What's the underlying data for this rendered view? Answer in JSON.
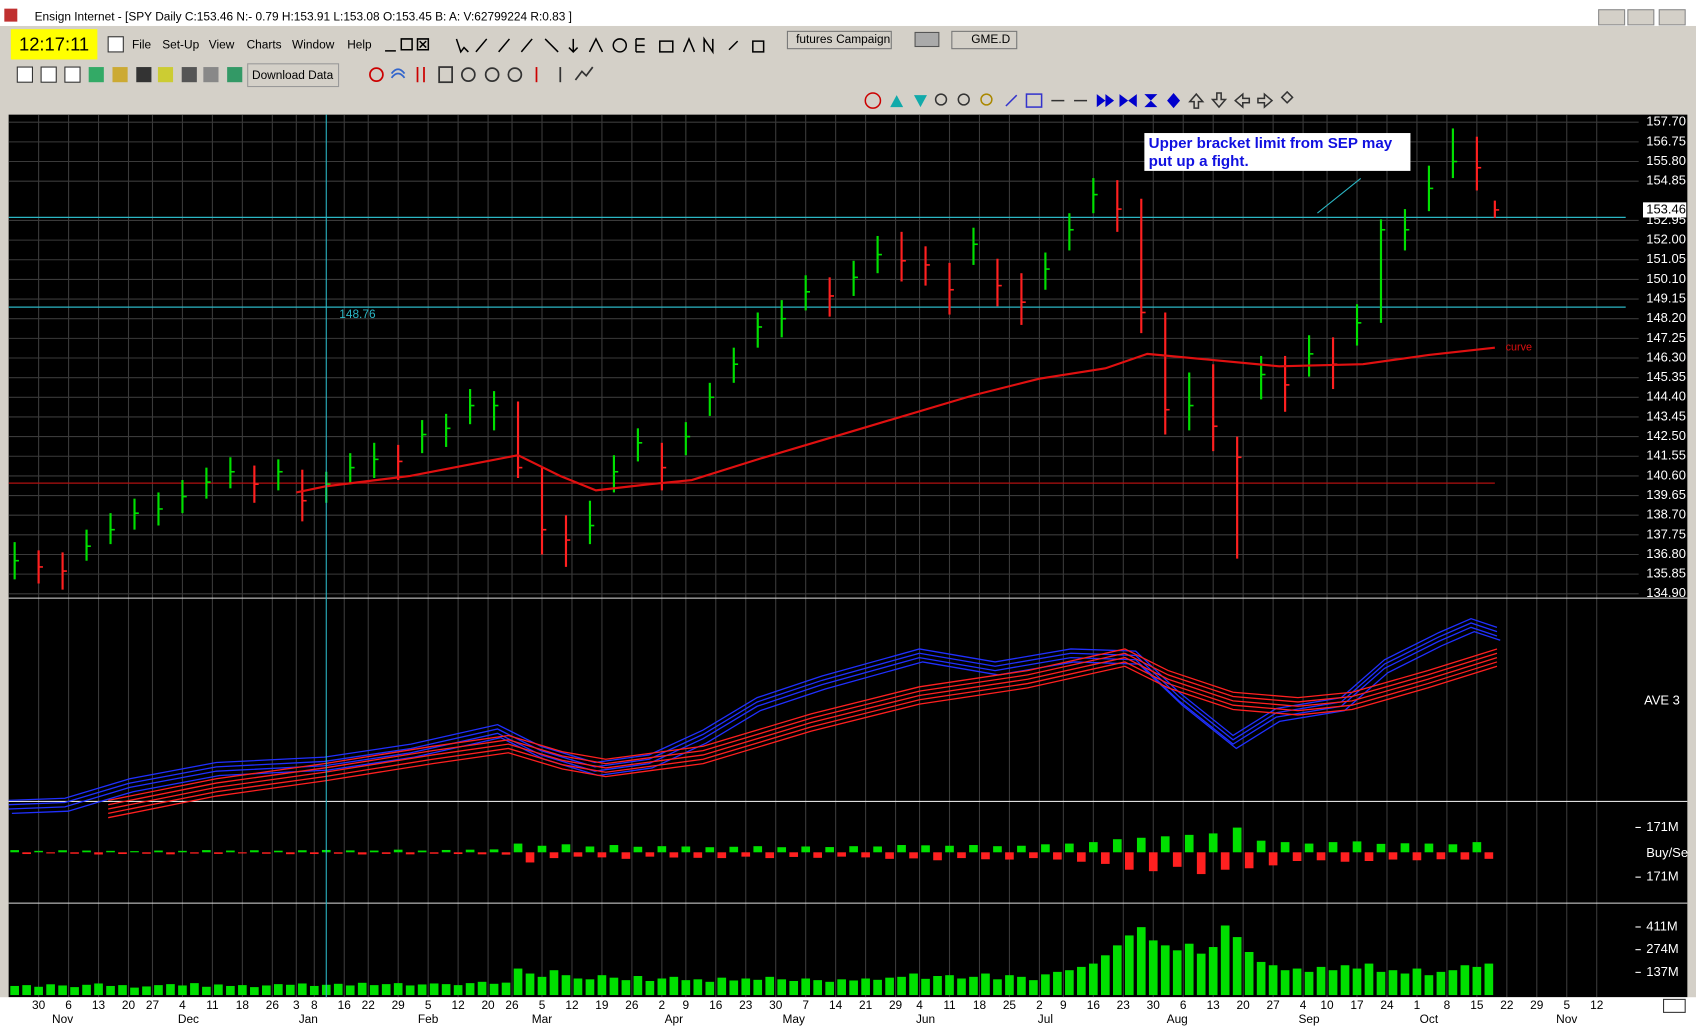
{
  "window": {
    "title": "Ensign Internet - [SPY Daily C:153.46 N:- 0.79 H:153.91 L:153.08 O:153.45 B: A: V:62799224 R:0.83 ]",
    "clock": "12:17:11",
    "menu": [
      "File",
      "Set-Up",
      "View",
      "Charts",
      "Window",
      "Help"
    ],
    "toolbar_button": "Download Data",
    "tabs": [
      "futures",
      "Campaign",
      "GME.D"
    ]
  },
  "chart_data": [
    {
      "type": "ohlc",
      "name": "SPY Daily",
      "xlim": [
        -5,
        267
      ],
      "ylim": [
        134.9,
        157.7
      ],
      "yticks": [
        {
          "value": 134.9,
          "label": "134.90"
        },
        {
          "value": 135.85,
          "label": "135.85"
        },
        {
          "value": 136.8,
          "label": "136.80"
        },
        {
          "value": 137.75,
          "label": "137.75"
        },
        {
          "value": 138.7,
          "label": "138.70"
        },
        {
          "value": 139.65,
          "label": "139.65"
        },
        {
          "value": 140.6,
          "label": "140.60"
        },
        {
          "value": 141.55,
          "label": "141.55"
        },
        {
          "value": 142.5,
          "label": "142.50"
        },
        {
          "value": 143.45,
          "label": "143.45"
        },
        {
          "value": 144.4,
          "label": "144.40"
        },
        {
          "value": 145.35,
          "label": "145.35"
        },
        {
          "value": 146.3,
          "label": "146.30"
        },
        {
          "value": 147.25,
          "label": "147.25"
        },
        {
          "value": 148.2,
          "label": "148.20"
        },
        {
          "value": 149.15,
          "label": "149.15"
        },
        {
          "value": 150.1,
          "label": "150.10"
        },
        {
          "value": 151.05,
          "label": "151.05"
        },
        {
          "value": 152,
          "label": "152.00"
        },
        {
          "value": 152.95,
          "label": "152.95"
        },
        {
          "value": 154.85,
          "label": "154.85"
        },
        {
          "value": 155.8,
          "label": "155.80"
        },
        {
          "value": 156.75,
          "label": "156.75"
        },
        {
          "value": 157.7,
          "label": "157.70"
        }
      ],
      "xticks": [
        {
          "value": 0,
          "label": "30"
        },
        {
          "value": 5,
          "label": "6"
        },
        {
          "value": 10,
          "label": "13"
        },
        {
          "value": 15,
          "label": "20"
        },
        {
          "value": 19,
          "label": "27"
        },
        {
          "value": 24,
          "label": "4"
        },
        {
          "value": 29,
          "label": "11"
        },
        {
          "value": 34,
          "label": "18"
        },
        {
          "value": 39,
          "label": "26"
        },
        {
          "value": 43,
          "label": "3"
        },
        {
          "value": 46,
          "label": "8"
        },
        {
          "value": 51,
          "label": "16"
        },
        {
          "value": 55,
          "label": "22"
        },
        {
          "value": 60,
          "label": "29"
        },
        {
          "value": 65,
          "label": "5"
        },
        {
          "value": 70,
          "label": "12"
        },
        {
          "value": 75,
          "label": "20"
        },
        {
          "value": 79,
          "label": "26"
        },
        {
          "value": 84,
          "label": "5"
        },
        {
          "value": 89,
          "label": "12"
        },
        {
          "value": 94,
          "label": "19"
        },
        {
          "value": 99,
          "label": "26"
        },
        {
          "value": 104,
          "label": "2"
        },
        {
          "value": 108,
          "label": "9"
        },
        {
          "value": 113,
          "label": "16"
        },
        {
          "value": 118,
          "label": "23"
        },
        {
          "value": 123,
          "label": "30"
        },
        {
          "value": 128,
          "label": "7"
        },
        {
          "value": 133,
          "label": "14"
        },
        {
          "value": 138,
          "label": "21"
        },
        {
          "value": 143,
          "label": "29"
        },
        {
          "value": 147,
          "label": "4"
        },
        {
          "value": 152,
          "label": "11"
        },
        {
          "value": 157,
          "label": "18"
        },
        {
          "value": 162,
          "label": "25"
        },
        {
          "value": 167,
          "label": "2"
        },
        {
          "value": 171,
          "label": "9"
        },
        {
          "value": 176,
          "label": "16"
        },
        {
          "value": 181,
          "label": "23"
        },
        {
          "value": 186,
          "label": "30"
        },
        {
          "value": 191,
          "label": "6"
        },
        {
          "value": 196,
          "label": "13"
        },
        {
          "value": 201,
          "label": "20"
        },
        {
          "value": 206,
          "label": "27"
        },
        {
          "value": 211,
          "label": "4"
        },
        {
          "value": 215,
          "label": "10"
        },
        {
          "value": 220,
          "label": "17"
        },
        {
          "value": 225,
          "label": "24"
        },
        {
          "value": 230,
          "label": "1"
        },
        {
          "value": 235,
          "label": "8"
        },
        {
          "value": 240,
          "label": "15"
        },
        {
          "value": 245,
          "label": "22"
        },
        {
          "value": 250,
          "label": "29"
        },
        {
          "value": 255,
          "label": "5"
        },
        {
          "value": 260,
          "label": "12"
        }
      ],
      "month_ticks": [
        {
          "value": 4,
          "label": "Nov"
        },
        {
          "value": 25,
          "label": "Dec"
        },
        {
          "value": 45,
          "label": "Jan"
        },
        {
          "value": 65,
          "label": "Feb"
        },
        {
          "value": 84,
          "label": "Mar"
        },
        {
          "value": 106,
          "label": "Apr"
        },
        {
          "value": 126,
          "label": "May"
        },
        {
          "value": 148,
          "label": "Jun"
        },
        {
          "value": 168,
          "label": "Jul"
        },
        {
          "value": 190,
          "label": "Aug"
        },
        {
          "value": 212,
          "label": "Sep"
        },
        {
          "value": 232,
          "label": "Oct"
        },
        {
          "value": 255,
          "label": "Nov"
        }
      ],
      "grid": true,
      "x": [
        -4,
        0,
        4,
        8,
        12,
        16,
        20,
        24,
        28,
        32,
        36,
        40,
        44,
        48,
        52,
        56,
        60,
        64,
        68,
        72,
        76,
        80,
        84,
        88,
        92,
        96,
        100,
        104,
        108,
        112,
        116,
        120,
        124,
        128,
        132,
        136,
        140,
        144,
        148,
        152,
        156,
        160,
        164,
        168,
        172,
        176,
        180,
        184,
        188,
        192,
        196,
        200,
        204,
        208,
        212,
        216,
        220,
        224,
        228,
        232,
        236,
        240,
        243
      ],
      "high": [
        137.4,
        137.0,
        136.9,
        138.0,
        138.8,
        139.5,
        139.8,
        140.4,
        141.0,
        141.5,
        141.1,
        141.4,
        140.9,
        140.8,
        141.7,
        142.2,
        142.1,
        143.3,
        143.6,
        144.8,
        144.7,
        144.2,
        141.0,
        138.7,
        139.4,
        141.6,
        142.9,
        142.2,
        143.2,
        145.1,
        146.8,
        148.5,
        149.1,
        150.3,
        150.2,
        151.0,
        152.2,
        152.4,
        151.7,
        150.9,
        152.6,
        151.1,
        150.4,
        151.4,
        153.3,
        155.0,
        154.9,
        154.0,
        148.5,
        145.6,
        146.0,
        142.5,
        146.4,
        146.4,
        147.4,
        147.3,
        148.9,
        153.0,
        153.5,
        155.6,
        157.4,
        157.0,
        153.91
      ],
      "low": [
        135.6,
        135.4,
        135.1,
        136.5,
        137.3,
        138.0,
        138.2,
        138.8,
        139.5,
        140.0,
        139.3,
        139.9,
        138.4,
        139.3,
        140.2,
        140.5,
        140.4,
        141.7,
        142.0,
        143.1,
        142.8,
        140.5,
        136.8,
        136.2,
        137.3,
        139.8,
        141.3,
        139.9,
        141.6,
        143.5,
        145.1,
        146.8,
        147.3,
        148.6,
        148.3,
        149.3,
        150.4,
        150.0,
        149.8,
        148.4,
        150.8,
        148.8,
        147.9,
        149.6,
        151.5,
        153.3,
        152.4,
        147.5,
        142.6,
        142.8,
        141.8,
        136.6,
        144.3,
        143.7,
        145.4,
        144.8,
        146.9,
        148.0,
        151.5,
        153.4,
        155.0,
        154.4,
        153.08
      ],
      "close": [
        136.5,
        136.2,
        136.0,
        137.2,
        138.0,
        138.8,
        139.0,
        139.6,
        140.3,
        140.8,
        140.2,
        140.8,
        139.4,
        140.2,
        141.0,
        141.4,
        141.3,
        142.6,
        142.9,
        144.0,
        144.0,
        141.0,
        138.0,
        137.5,
        138.2,
        140.8,
        142.2,
        141.0,
        142.5,
        144.4,
        146.0,
        147.8,
        148.2,
        149.5,
        149.3,
        150.2,
        151.3,
        151.0,
        150.8,
        149.6,
        151.8,
        149.8,
        149.0,
        150.6,
        152.5,
        154.2,
        153.5,
        148.5,
        143.8,
        144.0,
        143.0,
        141.5,
        145.5,
        145.0,
        146.5,
        146.0,
        148.0,
        152.5,
        152.5,
        154.5,
        155.8,
        155.5,
        153.46
      ],
      "up_color": "#00e000",
      "down_color": "#ff2020",
      "last_price": 153.46,
      "average": {
        "name": "curve",
        "color": "#e01010",
        "x": [
          43,
          48,
          62,
          71,
          80,
          87,
          93,
          102,
          109,
          120,
          138,
          156,
          167,
          178,
          185,
          196,
          207,
          221,
          232,
          243
        ],
        "values": [
          139.8,
          140.1,
          140.6,
          141.1,
          141.6,
          140.6,
          139.9,
          140.2,
          140.4,
          141.4,
          142.95,
          144.5,
          145.3,
          145.8,
          146.5,
          146.2,
          145.9,
          146.0,
          146.45,
          146.8
        ]
      },
      "hlines": [
        {
          "value": 153.1,
          "color": "#2bb6c4"
        },
        {
          "value": 148.76,
          "color": "#2bb6c4"
        },
        {
          "value": 140.25,
          "color": "#b01010"
        }
      ],
      "crosshair_x": 48,
      "annotation": [
        "Upper bracket limit from SEP may",
        "put up a fight."
      ],
      "ribbon_label": "AVE 3"
    },
    {
      "type": "bar",
      "name": "Buy/Se",
      "ylim": [
        -350,
        350
      ],
      "yticks": [
        {
          "value": 171,
          "label": "171M"
        },
        {
          "value": -171,
          "label": "171M"
        }
      ],
      "up_color": "#00e000",
      "down_color": "#ff2020",
      "x": [
        -4,
        -2,
        0,
        2,
        4,
        6,
        8,
        10,
        12,
        14,
        16,
        18,
        20,
        22,
        24,
        26,
        28,
        30,
        32,
        34,
        36,
        38,
        40,
        42,
        44,
        46,
        48,
        50,
        52,
        54,
        56,
        58,
        60,
        62,
        64,
        66,
        68,
        70,
        72,
        74,
        76,
        78,
        80,
        82,
        84,
        86,
        88,
        90,
        92,
        94,
        96,
        98,
        100,
        102,
        104,
        106,
        108,
        110,
        112,
        114,
        116,
        118,
        120,
        122,
        124,
        126,
        128,
        130,
        132,
        134,
        136,
        138,
        140,
        142,
        144,
        146,
        148,
        150,
        152,
        154,
        156,
        158,
        160,
        162,
        164,
        166,
        168,
        170,
        172,
        174,
        176,
        178,
        180,
        182,
        184,
        186,
        188,
        190,
        192,
        194,
        196,
        198,
        200,
        202,
        204,
        206,
        208,
        210,
        212,
        214,
        216,
        218,
        220,
        222,
        224,
        226,
        228,
        230,
        232,
        234,
        236,
        238,
        240,
        242
      ],
      "values": [
        15,
        -12,
        10,
        -8,
        14,
        -10,
        12,
        -15,
        10,
        -12,
        8,
        -10,
        12,
        -14,
        10,
        -9,
        15,
        -11,
        12,
        -8,
        14,
        -10,
        11,
        -13,
        14,
        -12,
        16,
        -10,
        13,
        -15,
        12,
        -11,
        18,
        -14,
        12,
        -10,
        16,
        -12,
        18,
        -14,
        20,
        -16,
        60,
        -70,
        45,
        -40,
        55,
        -30,
        40,
        -35,
        50,
        -45,
        38,
        -30,
        42,
        -36,
        40,
        -38,
        35,
        -40,
        38,
        -30,
        42,
        -40,
        35,
        -32,
        40,
        -38,
        36,
        -30,
        42,
        -35,
        40,
        -45,
        50,
        -42,
        48,
        -55,
        45,
        -40,
        50,
        -48,
        42,
        -50,
        45,
        -40,
        55,
        -50,
        60,
        -65,
        70,
        -80,
        90,
        -120,
        100,
        -130,
        110,
        -100,
        120,
        -150,
        130,
        -120,
        170,
        -110,
        80,
        -90,
        70,
        -60,
        60,
        -55,
        70,
        -65,
        75,
        -60,
        58,
        -50,
        62,
        -55,
        60,
        -48,
        55,
        -50,
        70,
        -45
      ]
    },
    {
      "type": "bar",
      "name": "Volume",
      "ylim": [
        0,
        555
      ],
      "yticks": [
        {
          "value": 411,
          "label": "411M"
        },
        {
          "value": 274,
          "label": "274M"
        },
        {
          "value": 137,
          "label": "137M"
        }
      ],
      "color": "#00e000",
      "x": [
        -4,
        -2,
        0,
        2,
        4,
        6,
        8,
        10,
        12,
        14,
        16,
        18,
        20,
        22,
        24,
        26,
        28,
        30,
        32,
        34,
        36,
        38,
        40,
        42,
        44,
        46,
        48,
        50,
        52,
        54,
        56,
        58,
        60,
        62,
        64,
        66,
        68,
        70,
        72,
        74,
        76,
        78,
        80,
        82,
        84,
        86,
        88,
        90,
        92,
        94,
        96,
        98,
        100,
        102,
        104,
        106,
        108,
        110,
        112,
        114,
        116,
        118,
        120,
        122,
        124,
        126,
        128,
        130,
        132,
        134,
        136,
        138,
        140,
        142,
        144,
        146,
        148,
        150,
        152,
        154,
        156,
        158,
        160,
        162,
        164,
        166,
        168,
        170,
        172,
        174,
        176,
        178,
        180,
        182,
        184,
        186,
        188,
        190,
        192,
        194,
        196,
        198,
        200,
        202,
        204,
        206,
        208,
        210,
        212,
        214,
        216,
        218,
        220,
        222,
        224,
        226,
        228,
        230,
        232,
        234,
        236,
        238,
        240,
        242
      ],
      "values": [
        55,
        60,
        50,
        65,
        58,
        48,
        62,
        70,
        55,
        60,
        45,
        52,
        60,
        66,
        58,
        72,
        50,
        64,
        55,
        60,
        48,
        58,
        66,
        62,
        70,
        55,
        62,
        68,
        58,
        74,
        60,
        66,
        72,
        58,
        64,
        70,
        66,
        60,
        72,
        80,
        68,
        75,
        160,
        130,
        110,
        150,
        120,
        100,
        95,
        120,
        105,
        90,
        115,
        85,
        100,
        110,
        90,
        95,
        80,
        105,
        88,
        100,
        92,
        110,
        95,
        85,
        100,
        90,
        80,
        95,
        88,
        100,
        92,
        105,
        110,
        130,
        98,
        115,
        120,
        100,
        110,
        130,
        95,
        120,
        110,
        90,
        125,
        140,
        150,
        170,
        190,
        240,
        300,
        360,
        410,
        330,
        300,
        270,
        310,
        250,
        290,
        420,
        350,
        260,
        200,
        180,
        150,
        160,
        140,
        170,
        150,
        180,
        160,
        190,
        140,
        150,
        130,
        160,
        120,
        140,
        150,
        180,
        170,
        190
      ]
    }
  ]
}
